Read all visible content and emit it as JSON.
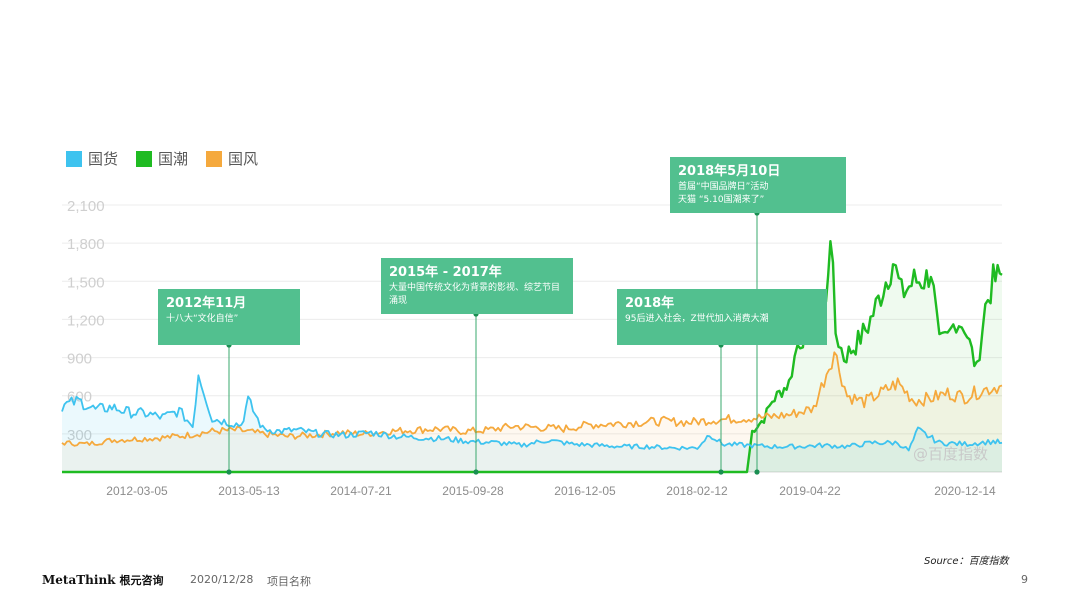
{
  "chart_data": {
    "type": "line",
    "title": "",
    "xlabel": "",
    "ylabel": "",
    "ylim": [
      0,
      2100
    ],
    "yticks": [
      300,
      600,
      900,
      1200,
      1500,
      1800,
      2100
    ],
    "ytick_labels": [
      "300",
      "600",
      "900",
      "1,200",
      "1,500",
      "1,800",
      "2,100"
    ],
    "xlim": [
      "2011-09-01",
      "2021-01-15"
    ],
    "xtick_labels": [
      "2012-03-05",
      "2013-05-13",
      "2014-07-21",
      "2015-09-28",
      "2016-12-05",
      "2018-02-12",
      "2019-04-22",
      "2020-12-14"
    ],
    "grid": true,
    "legend": "top-left",
    "series": [
      {
        "name": "国货",
        "color": "#3ec3ef",
        "x": [
          "2011-09-01",
          "2011-11-01",
          "2012-01-01",
          "2012-03-01",
          "2012-05-01",
          "2012-07-01",
          "2012-09-01",
          "2012-11-01",
          "2012-12-20",
          "2013-01-10",
          "2013-03-01",
          "2013-05-01",
          "2013-06-15",
          "2013-07-10",
          "2013-09-01",
          "2013-11-01",
          "2014-01-01",
          "2014-04-01",
          "2014-07-01",
          "2014-10-01",
          "2015-01-01",
          "2015-04-01",
          "2015-07-01",
          "2015-09-28",
          "2016-01-01",
          "2016-04-01",
          "2016-07-01",
          "2016-10-01",
          "2017-01-01",
          "2017-04-01",
          "2017-07-01",
          "2017-10-01",
          "2018-01-01",
          "2018-02-15",
          "2018-04-01",
          "2018-07-01",
          "2018-10-01",
          "2019-01-01",
          "2019-04-01",
          "2019-07-01",
          "2019-10-01",
          "2020-01-01",
          "2020-02-10",
          "2020-03-15",
          "2020-06-01",
          "2020-09-01",
          "2020-12-14",
          "2021-01-15"
        ],
        "values": [
          520,
          560,
          490,
          510,
          470,
          460,
          430,
          480,
          360,
          780,
          420,
          390,
          370,
          560,
          340,
          320,
          330,
          300,
          290,
          310,
          280,
          270,
          260,
          240,
          230,
          210,
          250,
          220,
          210,
          200,
          200,
          190,
          190,
          300,
          220,
          210,
          200,
          200,
          210,
          200,
          230,
          230,
          170,
          330,
          230,
          220,
          240,
          230
        ]
      },
      {
        "name": "国潮",
        "color": "#1fbb22",
        "x": [
          "2011-09-01",
          "2018-07-01",
          "2018-07-20",
          "2018-09-01",
          "2018-10-01",
          "2018-12-01",
          "2019-01-01",
          "2019-03-01",
          "2019-04-15",
          "2019-05-01",
          "2019-05-20",
          "2019-06-20",
          "2019-08-01",
          "2019-09-15",
          "2019-11-01",
          "2019-12-15",
          "2020-01-15",
          "2020-03-01",
          "2020-04-15",
          "2020-05-01",
          "2020-06-01",
          "2020-07-01",
          "2020-08-01",
          "2020-09-01",
          "2020-10-15",
          "2020-11-15",
          "2020-12-14",
          "2021-01-15"
        ],
        "values": [
          0,
          0,
          320,
          420,
          560,
          700,
          1000,
          1200,
          1300,
          1930,
          1100,
          900,
          1000,
          1150,
          1400,
          1660,
          1400,
          1500,
          1520,
          1600,
          1000,
          1050,
          1200,
          1150,
          800,
          1300,
          1500,
          1550
        ]
      },
      {
        "name": "国风",
        "color": "#f5a93d",
        "x": [
          "2011-09-01",
          "2011-12-01",
          "2012-03-01",
          "2012-06-01",
          "2012-09-01",
          "2012-12-01",
          "2013-03-01",
          "2013-06-01",
          "2013-09-01",
          "2013-12-01",
          "2014-03-01",
          "2014-06-01",
          "2014-09-01",
          "2014-12-01",
          "2015-03-01",
          "2015-06-01",
          "2015-09-01",
          "2015-12-01",
          "2016-03-01",
          "2016-06-01",
          "2016-09-01",
          "2016-12-01",
          "2017-03-01",
          "2017-06-01",
          "2017-09-01",
          "2017-12-01",
          "2018-03-01",
          "2018-06-01",
          "2018-09-01",
          "2018-12-01",
          "2019-03-01",
          "2019-05-15",
          "2019-07-01",
          "2019-09-01",
          "2019-11-01",
          "2020-01-01",
          "2020-03-01",
          "2020-05-01",
          "2020-07-01",
          "2020-09-01",
          "2020-11-01",
          "2021-01-15"
        ],
        "values": [
          230,
          220,
          250,
          260,
          270,
          290,
          320,
          330,
          300,
          280,
          290,
          310,
          300,
          320,
          330,
          340,
          320,
          330,
          360,
          350,
          340,
          370,
          380,
          390,
          400,
          390,
          410,
          420,
          430,
          450,
          500,
          950,
          600,
          550,
          620,
          700,
          560,
          580,
          620,
          590,
          640,
          680
        ]
      }
    ]
  },
  "callouts": [
    {
      "title": "2012年11月",
      "desc": "十八大“文化自信”",
      "date": "2012-11-01"
    },
    {
      "title": "2015年 - 2017年",
      "desc": "大量中国传统文化为背景的影视、综艺节目涌现",
      "date": "2015-09-28"
    },
    {
      "title": "2018年",
      "desc": "95后进入社会，Z世代加入消费大潮",
      "date": "2018-02-12"
    },
    {
      "title": "2018年5月10日",
      "desc1": "首届“中国品牌日”活动",
      "desc2": "天猫 “5.10国潮来了”",
      "date": "2018-05-10"
    }
  ],
  "watermark": "@百度指数",
  "source": "Source：百度指数",
  "footer": {
    "logo_en": "MetaThink",
    "logo_cn": "根元咨询",
    "date": "2020/12/28",
    "project": "项目名称",
    "page": "9"
  }
}
